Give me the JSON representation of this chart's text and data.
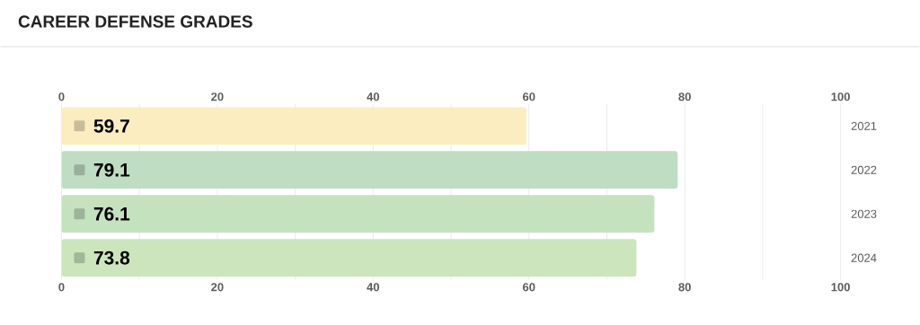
{
  "chart_data": {
    "type": "bar",
    "title": "CAREER DEFENSE GRADES",
    "orientation": "horizontal",
    "categories": [
      "2021",
      "2022",
      "2023",
      "2024"
    ],
    "values": [
      59.7,
      79.1,
      76.1,
      73.8
    ],
    "colors": [
      "#fcedc0",
      "#bfddc2",
      "#c5e2bf",
      "#cde5bd"
    ],
    "xlim": [
      0,
      100
    ],
    "xticks": [
      0,
      {
        "value": 10,
        "label": null
      },
      20,
      {
        "value": 30,
        "label": null
      },
      40,
      {
        "value": 50,
        "label": null
      },
      60,
      {
        "value": 70,
        "label": null
      },
      80,
      {
        "value": 90,
        "label": null
      },
      100
    ],
    "x2lim": [
      0,
      100
    ],
    "x2ticks": [
      0,
      20,
      40,
      60,
      80,
      100
    ],
    "grid": "x",
    "data_labels": true
  }
}
